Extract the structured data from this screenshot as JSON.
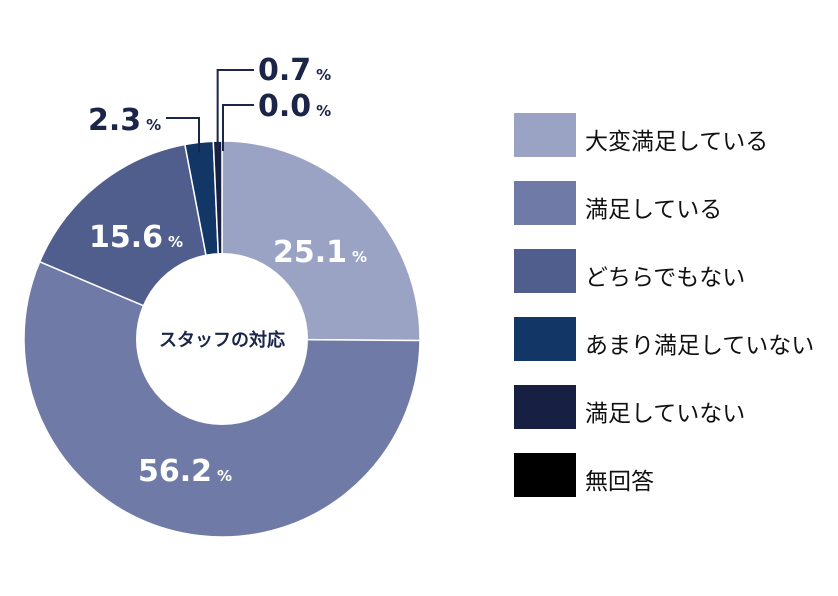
{
  "chart_data": {
    "type": "pie",
    "donut": true,
    "center_label": "スタッフの対応",
    "unit": "%",
    "categories": [
      "大変満足している",
      "満足している",
      "どちらでもない",
      "あまり満足していない",
      "満足していない",
      "無回答"
    ],
    "values": [
      25.1,
      56.2,
      15.6,
      2.3,
      0.7,
      0.0
    ],
    "value_labels": [
      "25.1",
      "56.2",
      "15.6",
      "2.3",
      "0.7",
      "0.0"
    ],
    "colors": [
      "#9aa3c4",
      "#6f7ba6",
      "#4f5e8c",
      "#123666",
      "#171f42",
      "#000000"
    ],
    "legend_position": "right"
  }
}
